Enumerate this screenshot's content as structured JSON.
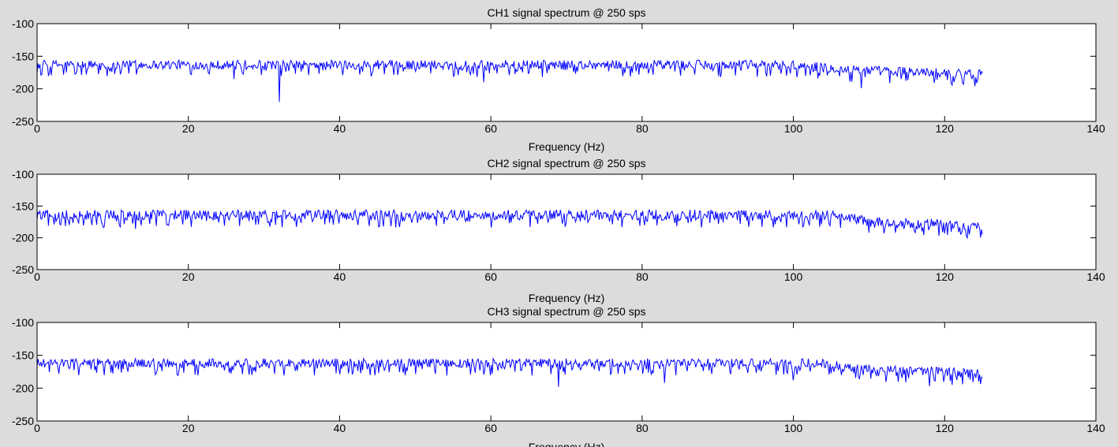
{
  "figure": {
    "background": "#dcdcdc",
    "axes_background": "#ffffff",
    "line_color": "#0000ff"
  },
  "chart_data": [
    {
      "type": "line",
      "title": "CH1 signal spectrum @ 250  sps",
      "xlabel": "Frequency (Hz)",
      "ylabel": "",
      "xlim": [
        0,
        140
      ],
      "ylim": [
        -250,
        -100
      ],
      "xticks": [
        0,
        20,
        40,
        60,
        80,
        100,
        120,
        140
      ],
      "yticks": [
        -100,
        -150,
        -200,
        -250
      ],
      "grid": false,
      "series": [
        {
          "x_range": [
            0,
            125
          ],
          "base_profile": [
            [
              0,
              -163
            ],
            [
              100,
              -163
            ],
            [
              108,
              -171
            ],
            [
              125,
              -177
            ]
          ],
          "noise_amplitude": 7,
          "spikes": [
            [
              32,
              -220
            ],
            [
              26,
              -185
            ],
            [
              59,
              -190
            ],
            [
              109,
              -199
            ],
            [
              124,
              -196
            ]
          ]
        }
      ]
    },
    {
      "type": "line",
      "title": "CH2 signal spectrum @ 250  sps",
      "xlabel": "Frequency (Hz)",
      "ylabel": "",
      "xlim": [
        0,
        140
      ],
      "ylim": [
        -250,
        -100
      ],
      "xticks": [
        0,
        20,
        40,
        60,
        80,
        100,
        120,
        140
      ],
      "yticks": [
        -100,
        -150,
        -200,
        -250
      ],
      "grid": false,
      "series": [
        {
          "x_range": [
            0,
            125
          ],
          "base_profile": [
            [
              0,
              -164
            ],
            [
              106,
              -164
            ],
            [
              110,
              -175
            ],
            [
              125,
              -180
            ]
          ],
          "noise_amplitude": 8,
          "spikes": [
            [
              13,
              -186
            ],
            [
              110,
              -192
            ],
            [
              123,
              -200
            ],
            [
              120,
              -193
            ]
          ]
        }
      ]
    },
    {
      "type": "line",
      "title": "CH3 signal spectrum @ 250  sps",
      "xlabel": "Frequency (Hz)",
      "ylabel": "",
      "xlim": [
        0,
        140
      ],
      "ylim": [
        -250,
        -100
      ],
      "xticks": [
        0,
        20,
        40,
        60,
        80,
        100,
        120,
        140
      ],
      "yticks": [
        -100,
        -150,
        -200,
        -250
      ],
      "grid": false,
      "series": [
        {
          "x_range": [
            0,
            125
          ],
          "base_profile": [
            [
              0,
              -162
            ],
            [
              104,
              -162
            ],
            [
              108,
              -170
            ],
            [
              125,
              -178
            ]
          ],
          "noise_amplitude": 7,
          "spikes": [
            [
              69,
              -198
            ],
            [
              83,
              -192
            ],
            [
              100,
              -188
            ],
            [
              118,
              -197
            ],
            [
              121,
              -195
            ]
          ]
        }
      ]
    }
  ]
}
